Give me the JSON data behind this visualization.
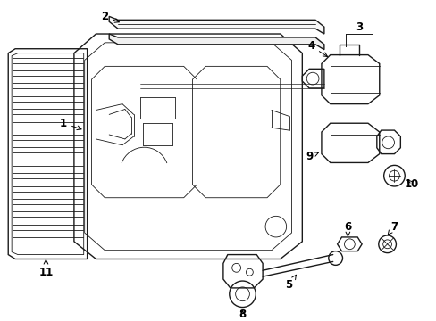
{
  "background_color": "#ffffff",
  "line_color": "#1a1a1a",
  "label_color": "#000000",
  "lw_main": 1.0,
  "lw_thin": 0.6,
  "label_fs": 8.5,
  "figsize": [
    4.89,
    3.6
  ],
  "dpi": 100
}
